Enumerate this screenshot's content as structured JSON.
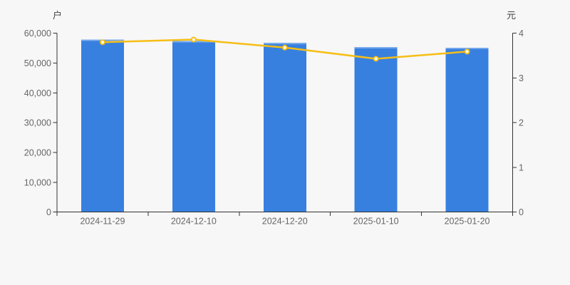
{
  "window": {
    "background": "#f7f7f7"
  },
  "axes": {
    "left": {
      "unit": "户",
      "tick_labels": [
        "0",
        "10,000",
        "20,000",
        "30,000",
        "40,000",
        "50,000",
        "60,000"
      ],
      "tick_values": [
        0,
        10000,
        20000,
        30000,
        40000,
        50000,
        60000
      ],
      "max": 60000
    },
    "right": {
      "unit": "元",
      "tick_labels": [
        "0",
        "1",
        "2",
        "3",
        "4"
      ],
      "tick_values": [
        0,
        1,
        2,
        3,
        4
      ],
      "max": 4
    }
  },
  "chart_data": {
    "type": "bar",
    "subtype": "dual-axis bar + line",
    "title": "",
    "categories": [
      "2024-11-29",
      "2024-12-10",
      "2024-12-20",
      "2025-01-10",
      "2025-01-20"
    ],
    "series": [
      {
        "name": "户",
        "type": "bar",
        "y_axis": "left",
        "values": [
          57900,
          57400,
          56800,
          55400,
          55200
        ]
      },
      {
        "name": "元",
        "type": "line",
        "y_axis": "right",
        "values": [
          3.8,
          3.86,
          3.68,
          3.43,
          3.59
        ]
      }
    ],
    "left_ylim": [
      0,
      60000
    ],
    "right_ylim": [
      0,
      4
    ],
    "grid": false,
    "legend": false
  },
  "colors": {
    "background": "#f7f7f7",
    "bar": "#3780E0",
    "bar_top_cap": "rgba(255,255,255,0.35)",
    "line": "#F6BE16",
    "dot_fill": "#ffffff",
    "axis_line": "#333333",
    "tick_text": "#666666",
    "unit_text": "#444444"
  }
}
